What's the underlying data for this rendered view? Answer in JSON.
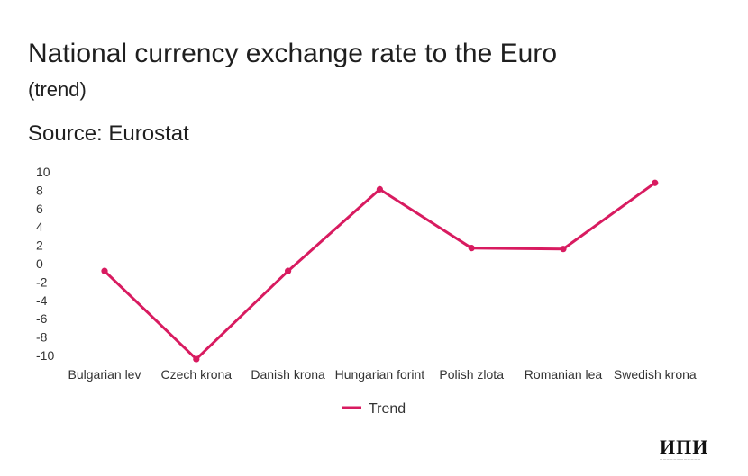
{
  "header": {
    "title": "National currency exchange rate to the Euro",
    "subtitle": "(trend)",
    "source": "Source: Eurostat"
  },
  "logo": {
    "mark": "ИПИ"
  },
  "colors": {
    "series": "#d81b60",
    "text": "#1f1f1f",
    "axis_text": "#333333"
  },
  "chart_data": {
    "type": "line",
    "title": "National currency exchange rate to the Euro",
    "subtitle": "(trend)",
    "categories": [
      "Bulgarian lev",
      "Czech krona",
      "Danish krona",
      "Hungarian forint",
      "Polish zlota",
      "Romanian lea",
      "Swedish krona"
    ],
    "series": [
      {
        "name": "Trend",
        "values": [
          -0.8,
          -10.4,
          -0.8,
          8.1,
          1.7,
          1.6,
          8.8
        ]
      }
    ],
    "y_ticks": [
      "10",
      "8",
      "6",
      "4",
      "2",
      "0",
      "-2",
      "-4",
      "-6",
      "-8",
      "-10"
    ],
    "ylim": [
      -10,
      10
    ],
    "xlabel": "",
    "ylabel": "",
    "grid": false,
    "legend_position": "bottom-center"
  }
}
